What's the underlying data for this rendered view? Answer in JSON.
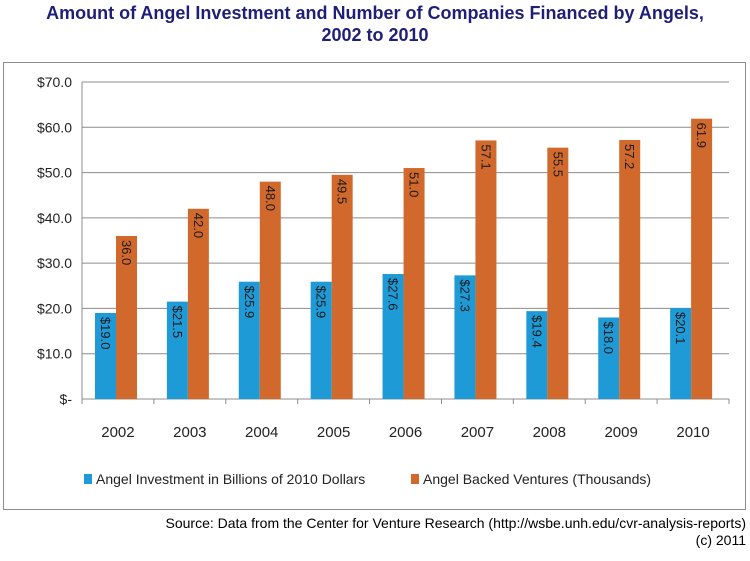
{
  "title": {
    "line1": "Amount of Angel Investment and Number of Companies Financed by Angels,",
    "line2": "2002 to 2010"
  },
  "source": {
    "line1": "Source:  Data from the Center for Venture Research (http://wsbe.unh.edu/cvr-analysis-reports)",
    "line2": "(c) 2011"
  },
  "chart_data": {
    "type": "bar",
    "categories": [
      "2002",
      "2003",
      "2004",
      "2005",
      "2006",
      "2007",
      "2008",
      "2009",
      "2010"
    ],
    "series": [
      {
        "name": "Angel Investment in Billions of 2010 Dollars",
        "color": "#1e9ad6",
        "values": [
          19.0,
          21.5,
          25.9,
          25.9,
          27.6,
          27.3,
          19.4,
          18.0,
          20.1
        ],
        "labels": [
          "$19.0",
          "$21.5",
          "$25.9",
          "$25.9",
          "$27.6",
          "$27.3",
          "$19.4",
          "$18.0",
          "$20.1"
        ]
      },
      {
        "name": "Angel Backed Ventures (Thousands)",
        "color": "#d2692c",
        "values": [
          36.0,
          42.0,
          48.0,
          49.5,
          51.0,
          57.1,
          55.5,
          57.2,
          61.9
        ],
        "labels": [
          "36.0",
          "42.0",
          "48.0",
          "49.5",
          "51.0",
          "57.1",
          "55.5",
          "57.2",
          "61.9"
        ]
      }
    ],
    "yticks": [
      0,
      10,
      20,
      30,
      40,
      50,
      60,
      70
    ],
    "ytick_labels": [
      "$-",
      "$10.0",
      "$20.0",
      "$30.0",
      "$40.0",
      "$50.0",
      "$60.0",
      "$70.0"
    ],
    "ylim": [
      0,
      70
    ],
    "grid": true,
    "legend_position": "bottom"
  }
}
